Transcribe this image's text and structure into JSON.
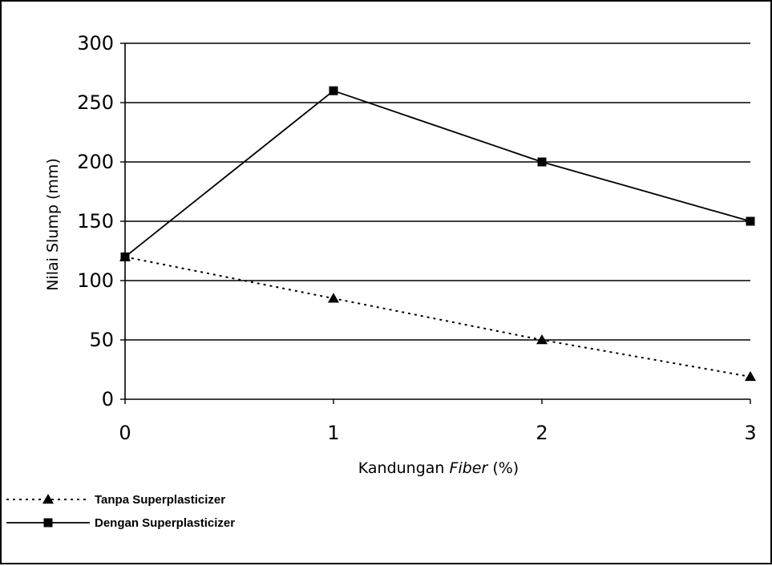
{
  "chart_data": {
    "type": "line",
    "xlabel_main": "Kandungan ",
    "xlabel_italic": "Fiber",
    "xlabel_tail": " (%)",
    "ylabel": "Nilai Slump (mm)",
    "x": [
      0,
      1,
      2,
      3
    ],
    "xlim": [
      0,
      3
    ],
    "ylim": [
      0,
      300
    ],
    "yticks": [
      0,
      50,
      100,
      150,
      200,
      250,
      300
    ],
    "xticks": [
      0,
      1,
      2,
      3
    ],
    "grid": true,
    "legend_position": "bottom-left",
    "series": [
      {
        "name": "Tanpa Superplasticizer",
        "values": [
          120,
          85,
          50,
          19
        ],
        "marker": "triangle",
        "line": "dotted"
      },
      {
        "name": "Dengan Superplasticizer",
        "values": [
          120,
          260,
          200,
          150
        ],
        "marker": "square",
        "line": "solid"
      }
    ]
  }
}
